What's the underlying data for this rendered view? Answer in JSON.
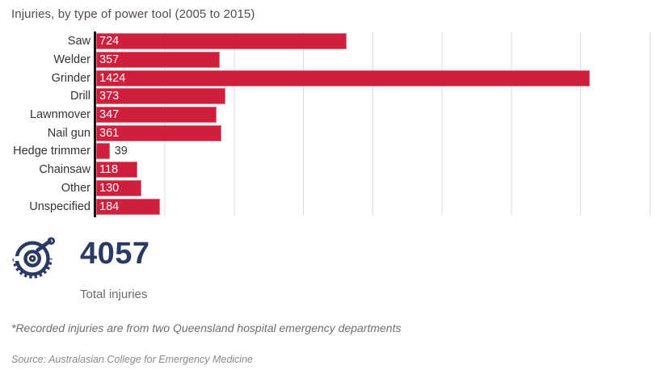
{
  "title": "Injuries, by type of power tool (2005 to 2015)",
  "chart_data": {
    "type": "bar",
    "orientation": "horizontal",
    "title": "Injuries, by type of power tool (2005 to 2015)",
    "categories": [
      "Saw",
      "Welder",
      "Grinder",
      "Drill",
      "Lawnmover",
      "Nail gun",
      "Hedge trimmer",
      "Chainsaw",
      "Other",
      "Unspecified"
    ],
    "values": [
      724,
      357,
      1424,
      373,
      347,
      361,
      39,
      118,
      130,
      184
    ],
    "xlabel": "",
    "ylabel": "",
    "xlim": [
      0,
      1600
    ],
    "gridline_interval": 200,
    "grid": true,
    "legend": false,
    "bar_color": "#d01f3d",
    "value_label_inside_color": "#ffffff",
    "value_label_outside_color": "#333333"
  },
  "summary": {
    "total_value": "4057",
    "total_label": "Total injuries",
    "icon": "circular-saw-icon",
    "accent_color": "#2b3a64"
  },
  "footnote": "*Recorded injuries are from two Queensland hospital emergency departments",
  "source": "Source: Australasian College for Emergency Medicine"
}
